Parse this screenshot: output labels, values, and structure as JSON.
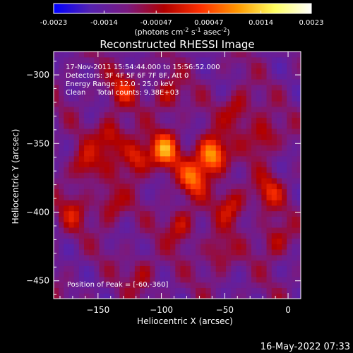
{
  "chart_data": {
    "type": "heatmap",
    "title": "Reconstructed RHESSI Image",
    "xlabel": "Heliocentric X (arcsec)",
    "ylabel": "Heliocentric Y (arcsec)",
    "xlim": [
      -185,
      10
    ],
    "ylim": [
      -463,
      -283
    ],
    "x_ticks": [
      -150,
      -100,
      -50,
      0
    ],
    "y_ticks": [
      -300,
      -350,
      -400,
      -450
    ],
    "grid": false,
    "colorbar": {
      "range": [
        -0.0023,
        0.0023
      ],
      "tick_values": [
        -0.0023,
        -0.0014,
        -0.00047,
        0.00047,
        0.0014,
        0.0023
      ],
      "tick_labels": [
        "-0.0023",
        "-0.0014",
        "-0.00047",
        "0.00047",
        "0.0014",
        "0.0023"
      ],
      "units_html": "(photons cm<tspan dy=\"-4\" font-size=\"8\">-2</tspan><tspan dy=\"4\"> s</tspan><tspan dy=\"-4\" font-size=\"8\">-1</tspan><tspan dy=\"4\"> asec</tspan><tspan dy=\"-4\" font-size=\"8\">-2</tspan><tspan dy=\"4\">)</tspan>",
      "colors": [
        "#0000ff",
        "#5522b0",
        "#7a1a80",
        "#b00000",
        "#ff3000",
        "#ff9900",
        "#ffff60",
        "#ffffff"
      ]
    },
    "annotations": [
      "17-Nov-2011 15:54:44.000 to 15:56:52.000",
      "Detectors: 3F 4F 5F 6F 7F 8F, Att 0",
      "Energy Range: 12.0 - 25.0 keV",
      "Clean     Total counts: 9.38E+03"
    ],
    "peak_label": "Position of Peak = [-60,-360]",
    "peak": [
      -60,
      -360
    ],
    "sources": [
      {
        "x": -60,
        "y": -358,
        "value": 0.0023
      },
      {
        "x": -97,
        "y": -355,
        "value": 0.0019
      },
      {
        "x": -75,
        "y": -375,
        "value": 0.0016
      },
      {
        "x": -120,
        "y": -360,
        "value": 0.0014
      },
      {
        "x": -140,
        "y": -345,
        "value": 0.0012
      },
      {
        "x": -160,
        "y": -365,
        "value": 0.0011
      },
      {
        "x": -130,
        "y": -310,
        "value": 0.001
      },
      {
        "x": -95,
        "y": -315,
        "value": 0.0009
      },
      {
        "x": -40,
        "y": -325,
        "value": 0.001
      },
      {
        "x": -20,
        "y": -345,
        "value": 0.0011
      },
      {
        "x": -15,
        "y": -385,
        "value": 0.001
      },
      {
        "x": -45,
        "y": -395,
        "value": 0.0011
      },
      {
        "x": -85,
        "y": -410,
        "value": 0.001
      },
      {
        "x": -140,
        "y": -395,
        "value": 0.0009
      },
      {
        "x": -170,
        "y": -400,
        "value": 0.0008
      },
      {
        "x": -55,
        "y": -430,
        "value": 0.0008
      },
      {
        "x": -115,
        "y": -445,
        "value": 0.0007
      },
      {
        "x": -10,
        "y": -420,
        "value": 0.0009
      }
    ]
  },
  "footer": {
    "timestamp": "16-May-2022 07:33"
  }
}
